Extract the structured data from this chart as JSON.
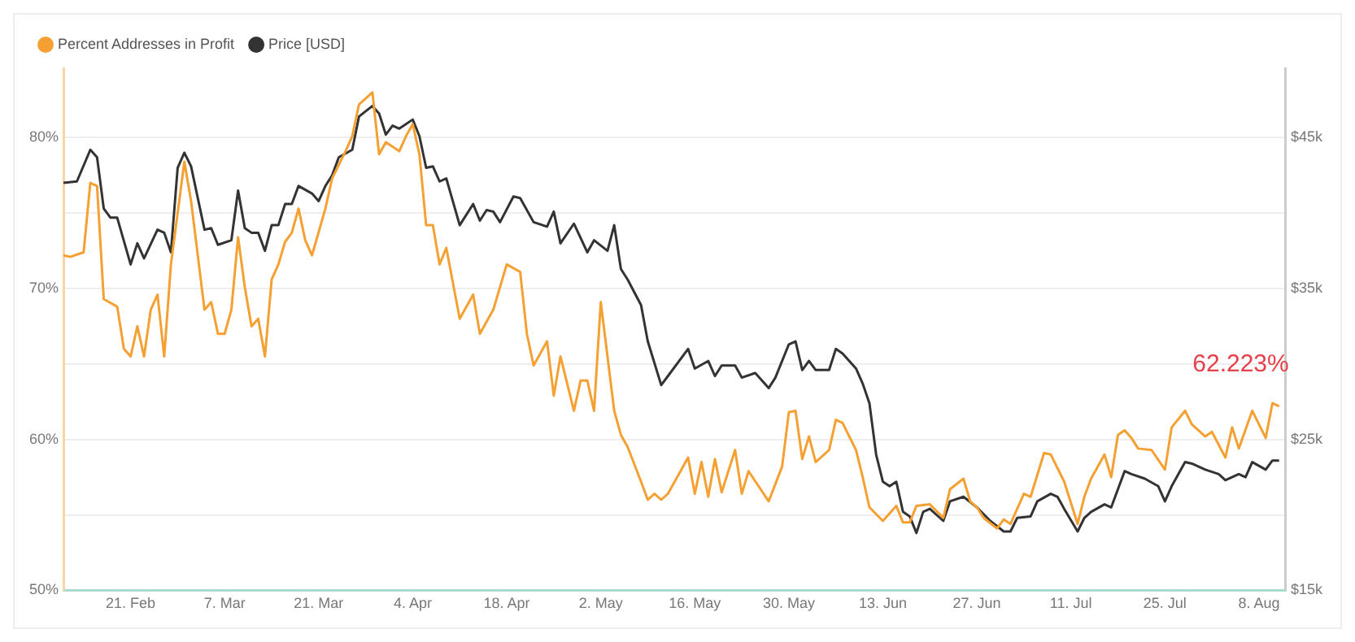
{
  "chart_data": {
    "type": "line",
    "xlim": [
      "--02-11",
      "--08-12"
    ],
    "xticks": [
      {
        "value": "--02-21",
        "label": "21. Feb"
      },
      {
        "value": "--03-07",
        "label": "7. Mar"
      },
      {
        "value": "--03-21",
        "label": "21. Mar"
      },
      {
        "value": "--04-04",
        "label": "4. Apr"
      },
      {
        "value": "--04-18",
        "label": "18. Apr"
      },
      {
        "value": "--05-02",
        "label": "2. May"
      },
      {
        "value": "--05-16",
        "label": "16. May"
      },
      {
        "value": "--05-30",
        "label": "30. May"
      },
      {
        "value": "--06-13",
        "label": "13. Jun"
      },
      {
        "value": "--06-27",
        "label": "27. Jun"
      },
      {
        "value": "--07-11",
        "label": "11. Jul"
      },
      {
        "value": "--07-25",
        "label": "25. Jul"
      },
      {
        "value": "--08-08",
        "label": "8. Aug"
      }
    ],
    "ylim": [
      50,
      84.6
    ],
    "yticks": [
      {
        "value": 50,
        "label": "50%"
      },
      {
        "value": 55,
        "label": null
      },
      {
        "value": 60,
        "label": "60%"
      },
      {
        "value": 65,
        "label": null
      },
      {
        "value": 70,
        "label": "70%"
      },
      {
        "value": 75,
        "label": null
      },
      {
        "value": 80,
        "label": "80%"
      }
    ],
    "y2lim": [
      15000,
      49600
    ],
    "y2ticks": [
      {
        "value": 15000,
        "label": "$15k"
      },
      {
        "value": 20000,
        "label": null
      },
      {
        "value": 25000,
        "label": "$25k"
      },
      {
        "value": 30000,
        "label": null
      },
      {
        "value": 35000,
        "label": "$35k"
      },
      {
        "value": 40000,
        "label": null
      },
      {
        "value": 45000,
        "label": "$45k"
      }
    ],
    "grid": "y",
    "legend": "top left",
    "marker": "none",
    "line_style": "solid",
    "annotations": [
      {
        "text": "62.223%",
        "x": "--08-11",
        "y": 62.2
      }
    ],
    "series": [
      {
        "name": "Percent Addresses in Profit",
        "color": "#f5a033",
        "x": [
          "--02-11",
          "--02-12",
          "--02-14",
          "--02-15",
          "--02-16",
          "--02-17",
          "--02-19",
          "--02-20",
          "--02-21",
          "--02-22",
          "--02-23",
          "--02-24",
          "--02-25",
          "--02-26",
          "--02-27",
          "--03-01",
          "--03-02",
          "--03-04",
          "--03-05",
          "--03-06",
          "--03-07",
          "--03-08",
          "--03-09",
          "--03-10",
          "--03-11",
          "--03-12",
          "--03-13",
          "--03-14",
          "--03-15",
          "--03-16",
          "--03-17",
          "--03-18",
          "--03-19",
          "--03-20",
          "--03-22",
          "--03-23",
          "--03-25",
          "--03-26",
          "--03-27",
          "--03-29",
          "--03-30",
          "--03-31",
          "--04-02",
          "--04-03",
          "--04-04",
          "--04-05",
          "--04-06",
          "--04-07",
          "--04-08",
          "--04-09",
          "--04-11",
          "--04-13",
          "--04-14",
          "--04-16",
          "--04-18",
          "--04-20",
          "--04-21",
          "--04-22",
          "--04-24",
          "--04-25",
          "--04-26",
          "--04-28",
          "--04-29",
          "--04-30",
          "--05-01",
          "--05-02",
          "--05-04",
          "--05-05",
          "--05-06",
          "--05-08",
          "--05-09",
          "--05-10",
          "--05-11",
          "--05-12",
          "--05-15",
          "--05-16",
          "--05-17",
          "--05-18",
          "--05-19",
          "--05-20",
          "--05-22",
          "--05-23",
          "--05-24",
          "--05-27",
          "--05-29",
          "--05-30",
          "--05-31",
          "--06-01",
          "--06-02",
          "--06-03",
          "--06-05",
          "--06-06",
          "--06-07",
          "--06-09",
          "--06-10",
          "--06-11",
          "--06-13",
          "--06-15",
          "--06-16",
          "--06-17",
          "--06-18",
          "--06-20",
          "--06-22",
          "--06-23",
          "--06-25",
          "--06-26",
          "--06-27",
          "--06-28",
          "--06-30",
          "--07-01",
          "--07-02",
          "--07-04",
          "--07-05",
          "--07-07",
          "--07-08",
          "--07-10",
          "--07-12",
          "--07-13",
          "--07-14",
          "--07-16",
          "--07-17",
          "--07-18",
          "--07-19",
          "--07-20",
          "--07-21",
          "--07-23",
          "--07-25",
          "--07-26",
          "--07-28",
          "--07-29",
          "--07-31",
          "--08-01",
          "--08-03",
          "--08-04",
          "--08-05",
          "--08-07",
          "--08-09",
          "--08-10",
          "--08-11"
        ],
        "values": [
          72.2,
          72.1,
          72.4,
          77.0,
          76.8,
          69.3,
          68.8,
          66.0,
          65.5,
          67.5,
          65.5,
          68.6,
          69.6,
          65.5,
          71.6,
          78.4,
          75.8,
          68.6,
          69.1,
          67.0,
          67.0,
          68.6,
          73.4,
          70.1,
          67.5,
          68.0,
          65.5,
          70.6,
          71.6,
          73.1,
          73.7,
          75.3,
          73.2,
          72.2,
          75.3,
          77.3,
          79.1,
          80.1,
          82.2,
          83.0,
          78.9,
          79.7,
          79.1,
          80.1,
          80.9,
          78.9,
          74.2,
          74.2,
          71.6,
          72.7,
          68.0,
          69.6,
          67.0,
          68.6,
          71.6,
          71.1,
          67.0,
          64.9,
          66.5,
          62.9,
          65.5,
          61.9,
          63.9,
          63.9,
          61.9,
          69.1,
          61.9,
          60.3,
          59.5,
          57.2,
          56.0,
          56.4,
          56.0,
          56.4,
          58.8,
          56.4,
          58.5,
          56.2,
          58.7,
          56.5,
          59.3,
          56.4,
          57.9,
          55.9,
          58.2,
          61.8,
          61.9,
          58.7,
          60.2,
          58.5,
          59.3,
          61.3,
          61.1,
          59.3,
          57.5,
          55.5,
          54.6,
          55.6,
          54.5,
          54.5,
          55.6,
          55.7,
          54.8,
          56.7,
          57.4,
          55.9,
          55.5,
          54.8,
          54.1,
          54.7,
          54.4,
          56.4,
          56.2,
          59.1,
          59.0,
          57.2,
          54.4,
          56.2,
          57.4,
          59.0,
          57.5,
          60.3,
          60.6,
          60.1,
          59.4,
          59.3,
          58.0,
          60.8,
          61.9,
          61.0,
          60.2,
          60.5,
          58.8,
          60.8,
          59.4,
          61.9,
          60.1,
          62.4,
          62.2
        ]
      },
      {
        "name": "Price [USD]",
        "color": "#333333",
        "axis": "y2",
        "x": [
          "--02-11",
          "--02-13",
          "--02-15",
          "--02-16",
          "--02-17",
          "--02-18",
          "--02-19",
          "--02-21",
          "--02-22",
          "--02-23",
          "--02-25",
          "--02-26",
          "--02-27",
          "--02-28",
          "--03-01",
          "--03-02",
          "--03-04",
          "--03-05",
          "--03-06",
          "--03-08",
          "--03-09",
          "--03-10",
          "--03-11",
          "--03-12",
          "--03-13",
          "--03-14",
          "--03-15",
          "--03-16",
          "--03-17",
          "--03-18",
          "--03-20",
          "--03-21",
          "--03-22",
          "--03-23",
          "--03-24",
          "--03-26",
          "--03-27",
          "--03-29",
          "--03-30",
          "--03-31",
          "--04-01",
          "--04-02",
          "--04-04",
          "--04-05",
          "--04-06",
          "--04-07",
          "--04-08",
          "--04-09",
          "--04-11",
          "--04-13",
          "--04-14",
          "--04-15",
          "--04-16",
          "--04-17",
          "--04-19",
          "--04-20",
          "--04-22",
          "--04-24",
          "--04-25",
          "--04-26",
          "--04-28",
          "--04-30",
          "--05-01",
          "--05-03",
          "--05-04",
          "--05-05",
          "--05-06",
          "--05-08",
          "--05-09",
          "--05-11",
          "--05-12",
          "--05-15",
          "--05-16",
          "--05-18",
          "--05-19",
          "--05-20",
          "--05-22",
          "--05-23",
          "--05-25",
          "--05-27",
          "--05-28",
          "--05-30",
          "--05-31",
          "--06-01",
          "--06-02",
          "--06-03",
          "--06-05",
          "--06-06",
          "--06-07",
          "--06-09",
          "--06-10",
          "--06-11",
          "--06-12",
          "--06-13",
          "--06-14",
          "--06-15",
          "--06-16",
          "--06-17",
          "--06-18",
          "--06-19",
          "--06-20",
          "--06-22",
          "--06-23",
          "--06-25",
          "--06-27",
          "--06-29",
          "--07-01",
          "--07-02",
          "--07-03",
          "--07-05",
          "--07-06",
          "--07-08",
          "--07-09",
          "--07-10",
          "--07-12",
          "--07-13",
          "--07-14",
          "--07-16",
          "--07-17",
          "--07-19",
          "--07-20",
          "--07-22",
          "--07-24",
          "--07-25",
          "--07-26",
          "--07-28",
          "--07-29",
          "--07-31",
          "--08-02",
          "--08-03",
          "--08-05",
          "--08-06",
          "--08-07",
          "--08-09",
          "--08-10",
          "--08-11"
        ],
        "values": [
          42000,
          42100,
          44200,
          43700,
          40300,
          39700,
          39700,
          36600,
          38000,
          37000,
          38900,
          38700,
          37400,
          43000,
          44000,
          43100,
          38900,
          39000,
          37900,
          38200,
          41500,
          39000,
          38700,
          38700,
          37500,
          39200,
          39200,
          40600,
          40600,
          41800,
          41300,
          40800,
          41800,
          42500,
          43700,
          44200,
          46400,
          47100,
          46600,
          45200,
          45800,
          45600,
          46200,
          45100,
          43000,
          43100,
          42100,
          42300,
          39200,
          40600,
          39500,
          40200,
          40100,
          39400,
          41100,
          41000,
          39400,
          39100,
          40100,
          38000,
          39300,
          37400,
          38200,
          37500,
          39200,
          36300,
          35600,
          33900,
          31500,
          28600,
          29200,
          31000,
          29700,
          30200,
          29200,
          29900,
          29900,
          29100,
          29400,
          28400,
          29100,
          31300,
          31500,
          29600,
          30200,
          29600,
          29600,
          31000,
          30700,
          29700,
          28700,
          27400,
          24000,
          22200,
          21900,
          22200,
          20200,
          19900,
          18800,
          20200,
          20400,
          19600,
          20900,
          21200,
          20500,
          19600,
          18900,
          18900,
          19800,
          19900,
          20900,
          21400,
          21200,
          20400,
          18900,
          19800,
          20200,
          20700,
          20500,
          22900,
          22700,
          22400,
          21900,
          20900,
          21900,
          23500,
          23400,
          23000,
          22700,
          22300,
          22700,
          22500,
          23500,
          23000,
          23600,
          23600
        ]
      }
    ]
  }
}
